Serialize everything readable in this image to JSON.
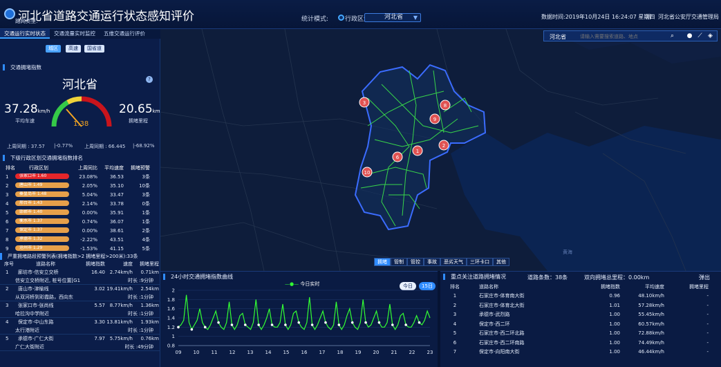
{
  "header": {
    "title": "河北省道路交通运行状态感知评价",
    "stat_mode_label": "统计模式:",
    "stat_radio_label": "行政区划",
    "region_select": "河北省",
    "data_time": "数据时间:2019年10月24日 16:24:07 星期四",
    "weather": "阴",
    "department": "河北省公安厅交通管理局"
  },
  "left": {
    "tabs": [
      "交通运行实时状态",
      "交通流量实时监控",
      "五维交通运行评价"
    ],
    "road_type_label": "路网类型:",
    "road_types": [
      "城区",
      "高速",
      "国省道"
    ],
    "index_section_title": "交通拥堵指数",
    "province": "河北省",
    "avg_speed": "37.28",
    "avg_speed_unit": "km/h",
    "avg_speed_label": "平均车速",
    "congestion_mileage": "20.65",
    "congestion_unit": "km",
    "congestion_label": "拥堵里程",
    "gauge_value": "1.38",
    "yoy_speed": "上周同期 : 37.57",
    "yoy_speed_change": "|-0.77%",
    "yoy_mileage": "上周同期 : 66.445",
    "yoy_mileage_change": "|-68.92%",
    "region_section_title": "下级行政区划交通拥堵指数排名",
    "region_headers": [
      "排名",
      "行政区划",
      "上周同比",
      "平均速度",
      "拥堵预警"
    ],
    "region_rows": [
      {
        "rank": "1",
        "name": "张家口市 1.60",
        "yoy": "23.08%",
        "speed": "36.53",
        "warn": "3条",
        "red": true
      },
      {
        "rank": "2",
        "name": "唐山市 1.49",
        "yoy": "2.05%",
        "speed": "35.10",
        "warn": "10条",
        "red": false
      },
      {
        "rank": "3",
        "name": "秦皇岛市 1.48",
        "yoy": "5.04%",
        "speed": "33.47",
        "warn": "3条",
        "red": false
      },
      {
        "rank": "4",
        "name": "邢台市 1.43",
        "yoy": "2.14%",
        "speed": "33.78",
        "warn": "0条",
        "red": false
      },
      {
        "rank": "5",
        "name": "邯郸市 1.40",
        "yoy": "0.00%",
        "speed": "35.91",
        "warn": "1条",
        "red": false
      },
      {
        "rank": "6",
        "name": "衡水市 1.37",
        "yoy": "0.74%",
        "speed": "36.07",
        "warn": "1条",
        "red": false
      },
      {
        "rank": "7",
        "name": "保定市 1.37",
        "yoy": "0.00%",
        "speed": "38.61",
        "warn": "2条",
        "red": false
      },
      {
        "rank": "8",
        "name": "承德市 1.32",
        "yoy": "-2.22%",
        "speed": "43.51",
        "warn": "4条",
        "red": false
      },
      {
        "rank": "9",
        "name": "沧州市 1.29",
        "yoy": "-1.53%",
        "speed": "41.15",
        "warn": "5条",
        "red": false
      }
    ],
    "severe_title": "严重拥堵路段预警列表(拥堵指数>2 拥堵里程>200米):33条",
    "severe_headers": [
      "序号",
      "道路名称",
      "拥堵指数",
      "速度",
      "拥堵里程"
    ],
    "severe_rows": [
      {
        "no": "1",
        "road": "廊坊市-信安立交桥",
        "index": "16.40",
        "speed": "2.74km/h",
        "mileage": "0.71km",
        "loc": "信安立交桥附近, 桩号位置[G112 K56M80...",
        "duration": "时长 :9分钟"
      },
      {
        "no": "2",
        "road": "唐山市-津榆线",
        "index": "3.02",
        "speed": "19.41km/h",
        "mileage": "2.54km",
        "loc": "从双河桥到彩霞路，西向东",
        "duration": "时长 :1分钟"
      },
      {
        "no": "3",
        "road": "张家口市-张尚线",
        "index": "5.57",
        "speed": "8.77km/h",
        "mileage": "1.36km",
        "loc": "哈拉沟中学附近",
        "duration": "时长 :1分钟"
      },
      {
        "no": "4",
        "road": "保定市-中山东路",
        "index": "3.30",
        "speed": "13.81km/h",
        "mileage": "1.93km",
        "loc": "太行港附近",
        "duration": "时长 :1分钟"
      },
      {
        "no": "5",
        "road": "承德市-广仁大街",
        "index": "7.97",
        "speed": "5.75km/h",
        "mileage": "0.76km",
        "loc": "广仁大街附近",
        "duration": "时长 :49分钟"
      }
    ]
  },
  "map": {
    "search_region": "河北省",
    "search_placeholder": "请输入需要搜索道路、地点",
    "markers": [
      "1",
      "2",
      "3",
      "6",
      "8",
      "9",
      "10"
    ],
    "toolbar": [
      "拥堵",
      "管制",
      "管控",
      "事故",
      "恶劣天气",
      "三环卡口",
      "其他"
    ],
    "toolbar_selected": 0,
    "sea_label": "黄海"
  },
  "chart_panel": {
    "title": "24小时交通拥堵指数曲线",
    "legend": "今日实时",
    "btn_today": "今日",
    "btn_15": "15日"
  },
  "chart_data": {
    "type": "line",
    "series_color": "#33ff33",
    "x_ticks": [
      "09",
      "10",
      "11",
      "12",
      "13",
      "14",
      "15",
      "16",
      "17",
      "18",
      "19",
      "20",
      "21",
      "22",
      "23"
    ],
    "ylim": [
      0.8,
      2
    ],
    "y_ticks": [
      0.8,
      1,
      1.2,
      1.4,
      1.6,
      1.8,
      2
    ],
    "values": [
      1.2,
      1.25,
      1.35,
      1.9,
      1.3,
      1.15,
      1.25,
      1.35,
      1.6,
      1.3,
      1.2,
      1.15,
      1.25,
      1.4,
      1.55,
      1.3,
      1.2,
      1.15,
      1.3,
      1.75,
      1.25,
      1.15,
      1.25,
      1.45,
      1.5,
      1.25,
      1.2,
      1.15,
      1.3,
      1.8,
      1.25,
      1.15,
      1.25,
      1.4,
      1.6,
      1.25,
      1.2,
      1.2,
      1.3,
      1.7,
      1.25,
      1.15,
      1.25,
      1.5,
      1.55,
      1.3,
      1.2,
      1.15,
      1.3,
      1.85,
      1.25,
      1.15,
      1.25,
      1.4,
      1.55,
      1.3,
      1.2,
      1.15,
      1.25,
      1.75,
      1.25,
      1.15,
      1.25,
      1.45,
      1.6,
      1.3,
      1.2,
      1.15,
      1.3,
      1.8,
      1.3,
      1.2,
      1.25,
      1.4,
      1.55,
      1.3,
      1.2,
      1.2,
      1.3,
      1.7,
      1.25,
      1.15,
      1.25,
      1.45,
      1.5,
      1.25,
      1.2,
      1.2,
      1.3,
      1.45,
      1.3,
      1.25,
      1.35,
      1.55,
      1.4
    ]
  },
  "road_panel": {
    "title": "重点关注道路拥堵情况",
    "count": "道路条数：38条",
    "total": "双向拥堵总里程：0.00km",
    "popup": "弹出",
    "headers": [
      "排名",
      "道路名称",
      "拥堵指数",
      "平均速度",
      "拥堵里程"
    ],
    "rows": [
      {
        "rank": "1",
        "name": "石家庄市-体育南大街",
        "index": "0.96",
        "speed": "48.10km/h",
        "mileage": "-"
      },
      {
        "rank": "2",
        "name": "石家庄市-体育北大街",
        "index": "1.01",
        "speed": "57.28km/h",
        "mileage": "-"
      },
      {
        "rank": "3",
        "name": "承德市-武烈路",
        "index": "1.00",
        "speed": "55.45km/h",
        "mileage": "-"
      },
      {
        "rank": "4",
        "name": "保定市-西二环",
        "index": "1.00",
        "speed": "60.57km/h",
        "mileage": "-"
      },
      {
        "rank": "5",
        "name": "石家庄市-西二环北路",
        "index": "1.00",
        "speed": "72.88km/h",
        "mileage": "-"
      },
      {
        "rank": "6",
        "name": "石家庄市-西二环南路",
        "index": "1.00",
        "speed": "74.49km/h",
        "mileage": "-"
      },
      {
        "rank": "7",
        "name": "保定市-向阳南大街",
        "index": "1.00",
        "speed": "46.44km/h",
        "mileage": "-"
      }
    ]
  }
}
